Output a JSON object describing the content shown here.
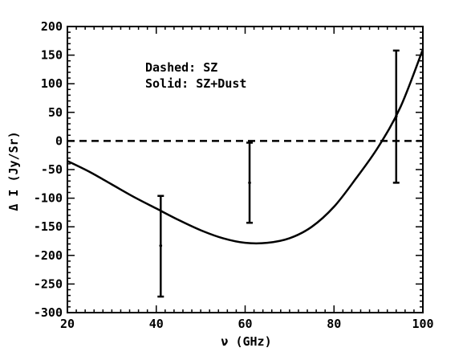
{
  "chart_data": {
    "type": "line",
    "title": "",
    "xlabel": "ν (GHz)",
    "ylabel": "Δ I (Jy/Sr)",
    "xlim": [
      20,
      100
    ],
    "ylim": [
      -300,
      200
    ],
    "xticks": [
      20,
      40,
      60,
      80,
      100
    ],
    "yticks": [
      200,
      150,
      100,
      50,
      0,
      -50,
      -100,
      -150,
      -200,
      -250,
      -300
    ],
    "grid": false,
    "annotations": [
      "Dashed: SZ",
      "Solid: SZ+Dust"
    ],
    "series": [
      {
        "style": "dashed",
        "x": [
          20,
          40,
          60,
          80,
          100
        ],
        "y": [
          0,
          0,
          0,
          0,
          0
        ]
      },
      {
        "style": "solid",
        "x": [
          20,
          25,
          30,
          35,
          40,
          45,
          50,
          55,
          60,
          65,
          70,
          75,
          80,
          85,
          90,
          95,
          100
        ],
        "y": [
          -35,
          -54,
          -76,
          -98,
          -118,
          -138,
          -156,
          -170,
          -178,
          -178,
          -170,
          -150,
          -115,
          -65,
          -10,
          60,
          160
        ]
      }
    ],
    "error_bars": [
      {
        "x": 41,
        "y": -183,
        "low": -272,
        "high": -96
      },
      {
        "x": 61,
        "y": -73,
        "low": -143,
        "high": -3
      },
      {
        "x": 94,
        "y": 43,
        "low": -73,
        "high": 158
      }
    ]
  }
}
